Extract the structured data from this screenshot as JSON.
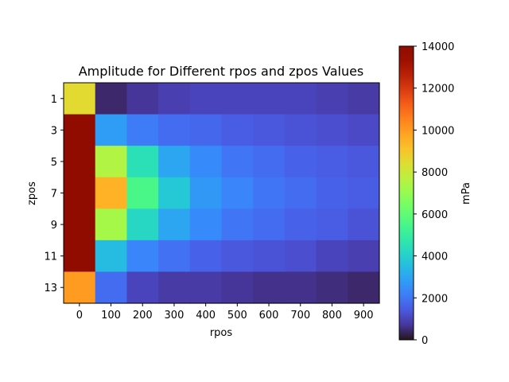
{
  "chart_data": {
    "type": "heatmap",
    "title": "Amplitude for Different rpos and zpos Values",
    "xlabel": "rpos",
    "ylabel": "zpos",
    "x": [
      0,
      100,
      200,
      300,
      400,
      500,
      600,
      700,
      800,
      900
    ],
    "y": [
      1,
      3,
      5,
      7,
      9,
      11,
      13
    ],
    "values": [
      [
        8500,
        400,
        700,
        900,
        1000,
        1000,
        1000,
        1000,
        900,
        800
      ],
      [
        14000,
        2800,
        2100,
        1800,
        1700,
        1500,
        1400,
        1300,
        1200,
        1100
      ],
      [
        14000,
        7500,
        4500,
        3000,
        2400,
        2000,
        1800,
        1600,
        1500,
        1400
      ],
      [
        14000,
        9500,
        5500,
        3800,
        2700,
        2300,
        2000,
        1800,
        1600,
        1500
      ],
      [
        14000,
        7300,
        4200,
        3000,
        2400,
        2000,
        1800,
        1600,
        1500,
        1300
      ],
      [
        14000,
        3500,
        2300,
        1900,
        1600,
        1400,
        1300,
        1200,
        1000,
        900
      ],
      [
        10000,
        1800,
        1000,
        800,
        800,
        700,
        600,
        600,
        500,
        400
      ]
    ],
    "colorbar": {
      "label": "mPa",
      "min": 0,
      "max": 14000,
      "ticks": [
        0,
        2000,
        4000,
        6000,
        8000,
        10000,
        12000,
        14000
      ]
    },
    "colormap": "turbo",
    "grid": false
  }
}
